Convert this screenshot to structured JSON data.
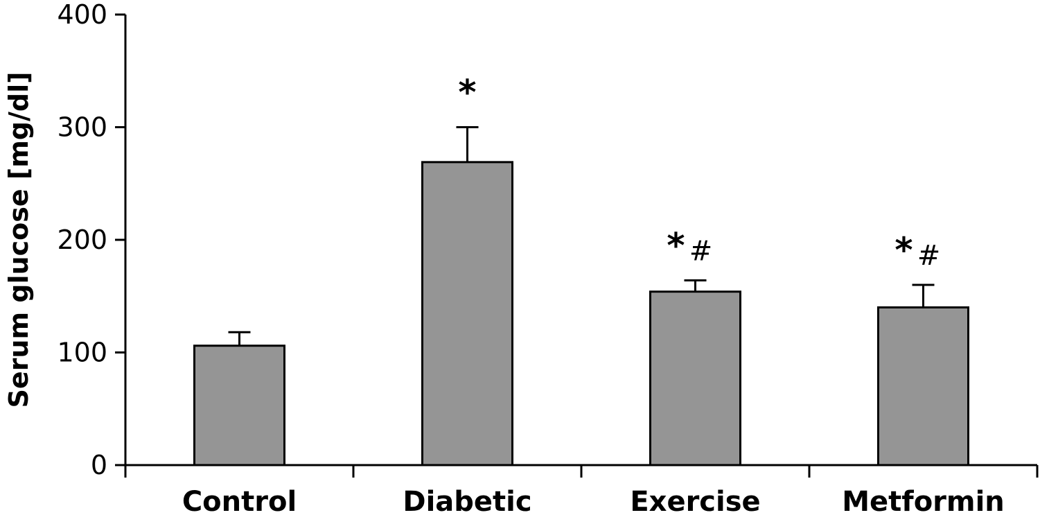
{
  "chart_data": {
    "type": "bar",
    "categories": [
      "Control",
      "Diabetic",
      "Exercise",
      "Metformin"
    ],
    "values": [
      106,
      269,
      154,
      140
    ],
    "errors": [
      12,
      31,
      10,
      20
    ],
    "annotations": [
      {
        "star": "",
        "hash": ""
      },
      {
        "star": "*",
        "hash": ""
      },
      {
        "star": "*",
        "hash": "#"
      },
      {
        "star": "*",
        "hash": "#"
      }
    ],
    "ylabel": "Serum glucose [mg/dl]",
    "xlabel": "",
    "ylim": [
      0,
      400
    ],
    "yticks": [
      0,
      100,
      200,
      300,
      400
    ],
    "bar_color": "#959595",
    "legend": "none",
    "grid": false
  }
}
